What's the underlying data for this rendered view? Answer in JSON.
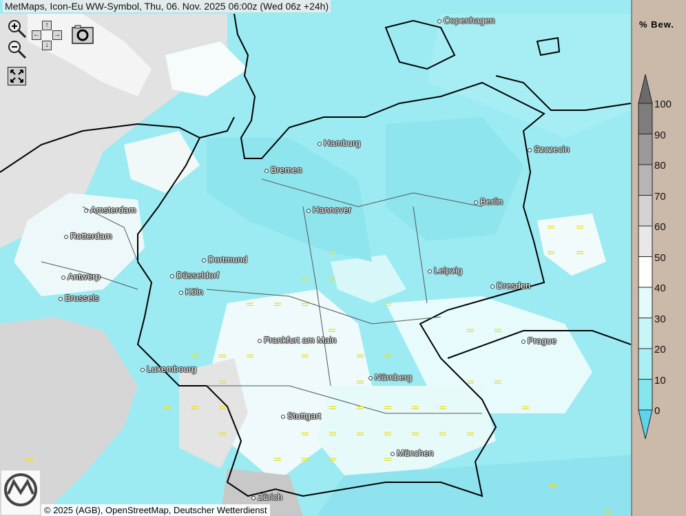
{
  "title": "MetMaps, Icon-Eu WW-Symbol, Thu, 06. Nov. 2025 06:00z (Wed 06z +24h)",
  "controls": {
    "zoom_in_icon": "zoom-in-magnifier",
    "zoom_out_icon": "zoom-out-magnifier",
    "pan_up": "↑",
    "pan_down": "↓",
    "pan_left": "←",
    "pan_right": "→",
    "camera_icon": "camera",
    "fullscreen_icon": "expand-arrows"
  },
  "cities": [
    {
      "name": "Copenhagen"
    },
    {
      "name": "Hamburg"
    },
    {
      "name": "Bremen"
    },
    {
      "name": "Szczecin"
    },
    {
      "name": "Amsterdam"
    },
    {
      "name": "Hannover"
    },
    {
      "name": "Berlin"
    },
    {
      "name": "Rotterdam"
    },
    {
      "name": "Dortmund"
    },
    {
      "name": "Leipzig"
    },
    {
      "name": "Antwerp"
    },
    {
      "name": "Düsseldorf"
    },
    {
      "name": "Dresden"
    },
    {
      "name": "Köln"
    },
    {
      "name": "Brussels"
    },
    {
      "name": "Frankfurt am Main"
    },
    {
      "name": "Prague"
    },
    {
      "name": "Luxembourg"
    },
    {
      "name": "Nürnberg"
    },
    {
      "name": "Stuttgart"
    },
    {
      "name": "München"
    },
    {
      "name": "Zürich"
    }
  ],
  "fog_symbol": "=",
  "fog_color": "#e8e03a",
  "copyright": "© 2025 (AGB), OpenStreetMap, Deutscher Wetterdienst",
  "logo_text": "METMAPS",
  "legend": {
    "title": "% Bew.",
    "ticks": [
      "100",
      "90",
      "80",
      "70",
      "60",
      "50",
      "40",
      "30",
      "20",
      "10",
      "0"
    ],
    "colors": [
      "#6b6b6b",
      "#7d7d7d",
      "#9a9a9a",
      "#b6b6b6",
      "#d3d3d3",
      "#e8e8e8",
      "#ffffff",
      "#e4fbfb",
      "#c8f6f8",
      "#a8f0f4",
      "#86e6ee",
      "#5cd4ea"
    ]
  }
}
